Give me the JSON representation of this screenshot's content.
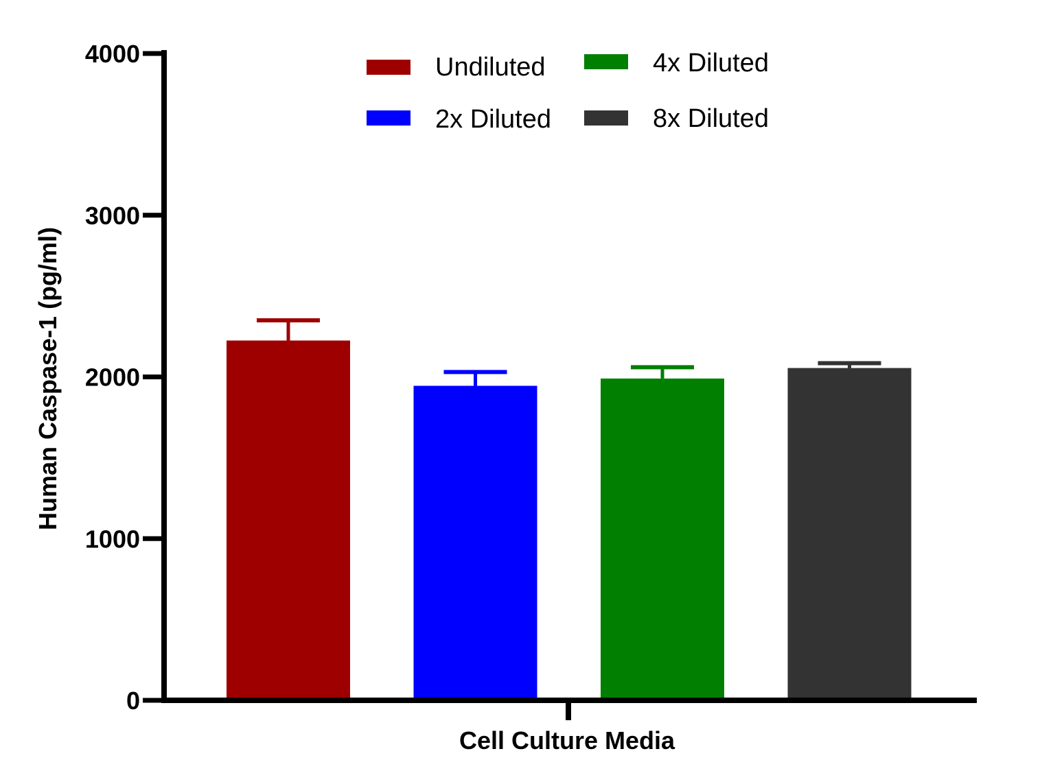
{
  "chart_data": {
    "type": "bar",
    "title": "",
    "xlabel": "Cell Culture Media",
    "ylabel": "Human Caspase-1 (pg/ml)",
    "ylim": [
      0,
      4000
    ],
    "yticks": [
      "0",
      "1000",
      "2000",
      "3000",
      "4000"
    ],
    "categories": [
      "Cell Culture Media"
    ],
    "grid": false,
    "legend_position": "top",
    "series": [
      {
        "name": "Undiluted",
        "values": [
          2225
        ],
        "error": [
          125
        ],
        "color": "#9e0000"
      },
      {
        "name": "2x Diluted",
        "values": [
          1945
        ],
        "error": [
          85
        ],
        "color": "#0000ff"
      },
      {
        "name": "4x Diluted",
        "values": [
          1990
        ],
        "error": [
          70
        ],
        "color": "#007f00"
      },
      {
        "name": "8x Diluted",
        "values": [
          2055
        ],
        "error": [
          30
        ],
        "color": "#333333"
      }
    ]
  }
}
